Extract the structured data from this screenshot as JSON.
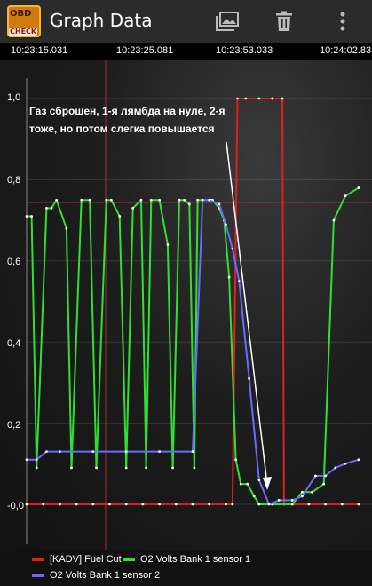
{
  "appbar": {
    "title": "Graph Data",
    "logo_top": "OBD",
    "logo_bottom": "CHECK"
  },
  "toolbar": {
    "gallery_icon": "gallery-icon",
    "delete_icon": "trash-icon",
    "menu_icon": "overflow-menu-icon"
  },
  "annotation": "Газ сброшен, 1-я лямбда на нуле, 2-я тоже, но потом слегка повышается",
  "chart_data": {
    "type": "line",
    "x_ticks": [
      "10:23:15.031",
      "10:23:25.081",
      "10:23:53.033",
      "10:24:02.83"
    ],
    "y_ticks": [
      "1,0",
      "0,8",
      "0,6",
      "0,4",
      "0,2",
      "-0,0"
    ],
    "ylim": [
      -0.2,
      1.03
    ],
    "grid": true,
    "legend_position": "bottom",
    "series": [
      {
        "name": "[KADV] Fuel Cut",
        "color": "#e02020",
        "x": [
          0,
          0.05,
          0.1,
          0.15,
          0.2,
          0.25,
          0.3,
          0.35,
          0.4,
          0.45,
          0.5,
          0.55,
          0.6,
          0.62,
          0.635,
          0.66,
          0.7,
          0.74,
          0.77,
          0.775,
          0.8,
          0.85,
          0.9,
          0.95,
          1.0
        ],
        "y": [
          0,
          0,
          0,
          0,
          0,
          0,
          0,
          0,
          0,
          0,
          0,
          0,
          0,
          0,
          1.0,
          1.0,
          1.0,
          1.0,
          1.0,
          0,
          0,
          0,
          0,
          0,
          0
        ]
      },
      {
        "name": "O2 Volts Bank 1 sensor 1",
        "color": "#30e030",
        "x": [
          0,
          0.015,
          0.03,
          0.06,
          0.075,
          0.09,
          0.12,
          0.135,
          0.165,
          0.19,
          0.21,
          0.24,
          0.255,
          0.28,
          0.3,
          0.32,
          0.345,
          0.36,
          0.375,
          0.4,
          0.425,
          0.44,
          0.46,
          0.475,
          0.49,
          0.505,
          0.515,
          0.53,
          0.555,
          0.56,
          0.58,
          0.595,
          0.61,
          0.63,
          0.645,
          0.665,
          0.685,
          0.7,
          0.74,
          0.8,
          0.83,
          0.86,
          0.895,
          0.925,
          0.96,
          1.0
        ],
        "y": [
          0.71,
          0.71,
          0.09,
          0.73,
          0.73,
          0.75,
          0.68,
          0.09,
          0.75,
          0.75,
          0.09,
          0.75,
          0.75,
          0.71,
          0.09,
          0.73,
          0.75,
          0.09,
          0.75,
          0.75,
          0.64,
          0.09,
          0.75,
          0.75,
          0.74,
          0.09,
          0.75,
          0.75,
          0.75,
          0.75,
          0.73,
          0.7,
          0.56,
          0.11,
          0.05,
          0.05,
          0.02,
          0.0,
          0.0,
          0.0,
          0.03,
          0.03,
          0.05,
          0.7,
          0.76,
          0.78
        ]
      },
      {
        "name": "O2 Volts Bank 1 sensor 2",
        "color": "#6a6aff",
        "x": [
          0,
          0.03,
          0.06,
          0.1,
          0.2,
          0.3,
          0.4,
          0.5,
          0.53,
          0.55,
          0.58,
          0.6,
          0.62,
          0.64,
          0.67,
          0.7,
          0.73,
          0.76,
          0.8,
          0.83,
          0.87,
          0.9,
          0.93,
          0.96,
          1.0
        ],
        "y": [
          0.11,
          0.11,
          0.13,
          0.13,
          0.13,
          0.13,
          0.13,
          0.13,
          0.75,
          0.75,
          0.74,
          0.69,
          0.63,
          0.55,
          0.31,
          0.06,
          0.0,
          0.01,
          0.01,
          0.02,
          0.07,
          0.07,
          0.09,
          0.1,
          0.11
        ]
      }
    ]
  },
  "legend": {
    "items": [
      {
        "label": "[KADV] Fuel Cut",
        "color": "#e02020"
      },
      {
        "label": "O2 Volts Bank 1 sensor 1",
        "color": "#30e030"
      },
      {
        "label": "O2 Volts Bank 1 sensor 2",
        "color": "#6a6aff"
      }
    ]
  }
}
